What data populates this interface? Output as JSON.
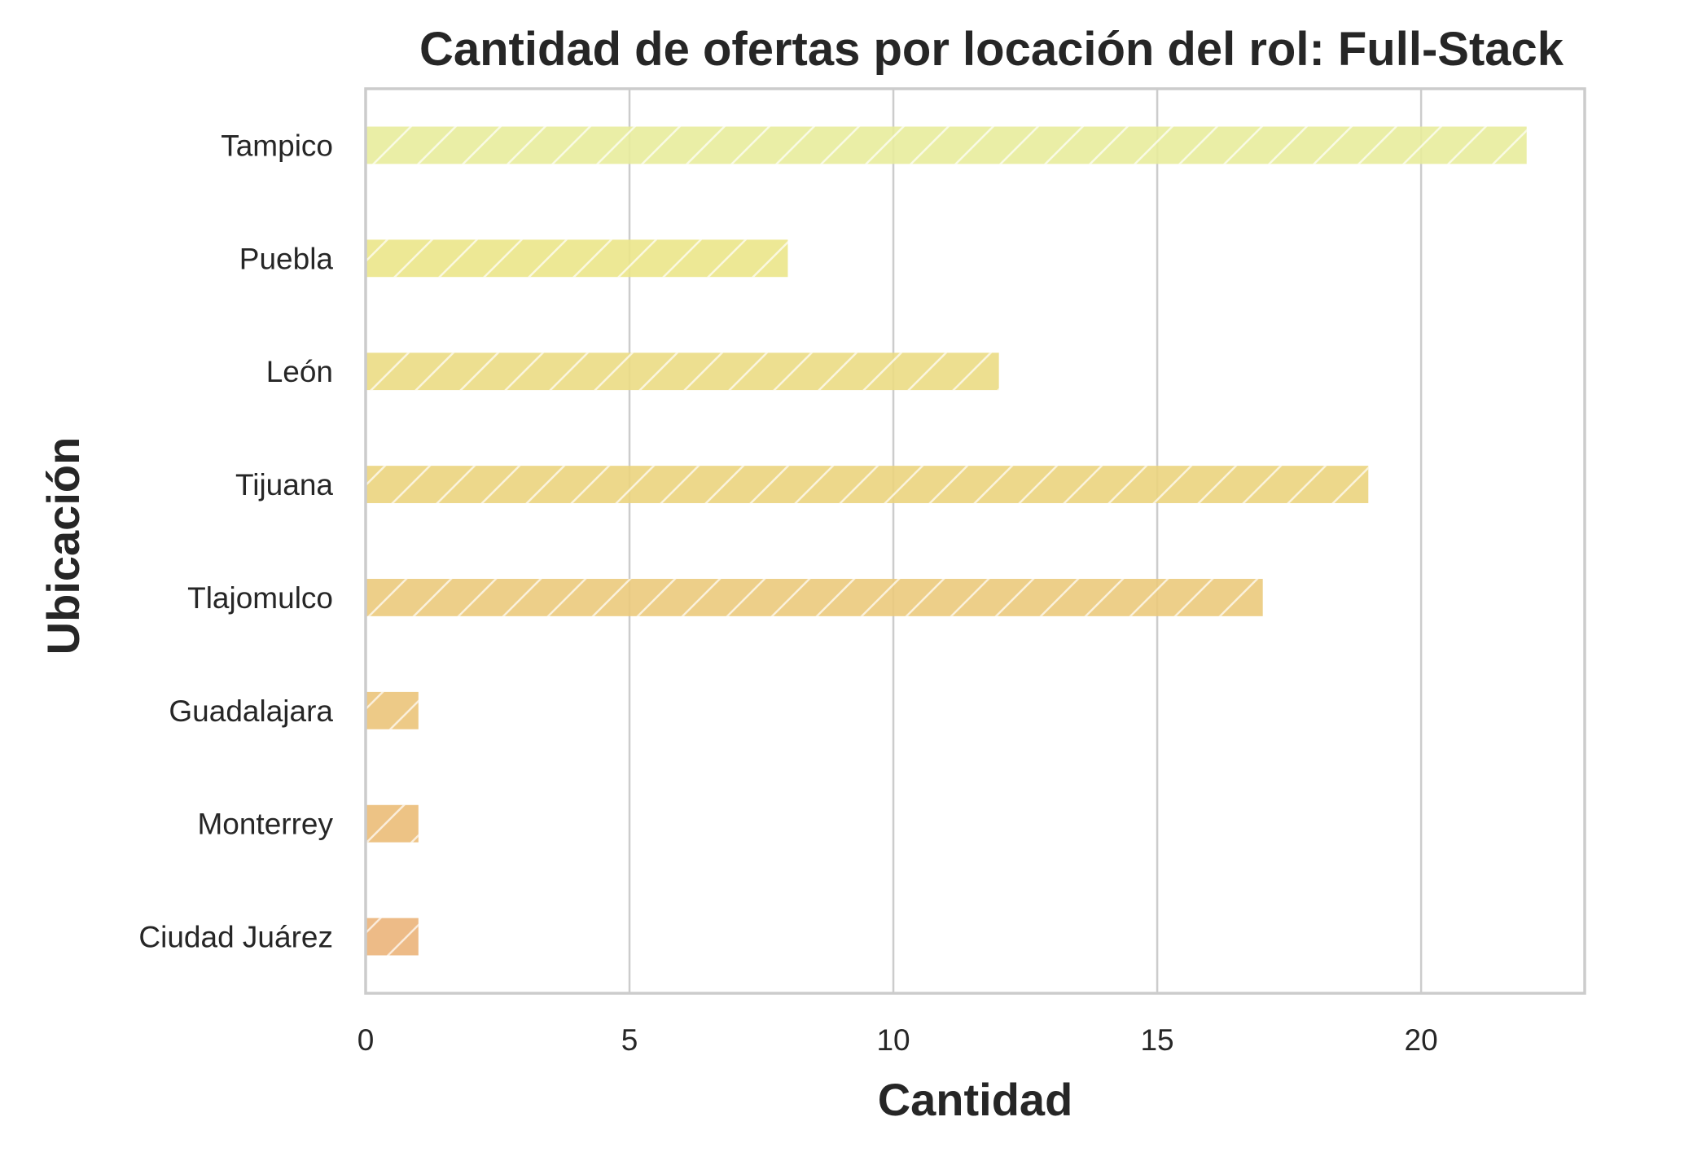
{
  "chart_data": {
    "type": "bar",
    "orientation": "horizontal",
    "title": "Cantidad de ofertas por locación del rol: Full-Stack",
    "xlabel": "Cantidad",
    "ylabel": "Ubicación",
    "categories": [
      "Tampico",
      "Puebla",
      "León",
      "Tijuana",
      "Tlajomulco",
      "Guadalajara",
      "Monterrey",
      "Ciudad Juárez"
    ],
    "values": [
      22,
      8,
      12,
      19,
      17,
      1,
      1,
      1
    ],
    "xlim": [
      0,
      23.1
    ],
    "xticks": [
      0,
      5,
      10,
      15,
      20
    ],
    "grid": "vertical",
    "legend": "none",
    "hatch": "diagonal",
    "colors": [
      "#e8ec9c",
      "#ebe68a",
      "#ebdc84",
      "#ebd47e",
      "#ebca7c",
      "#ebc47a",
      "#ebbc78",
      "#ebb47a"
    ]
  }
}
